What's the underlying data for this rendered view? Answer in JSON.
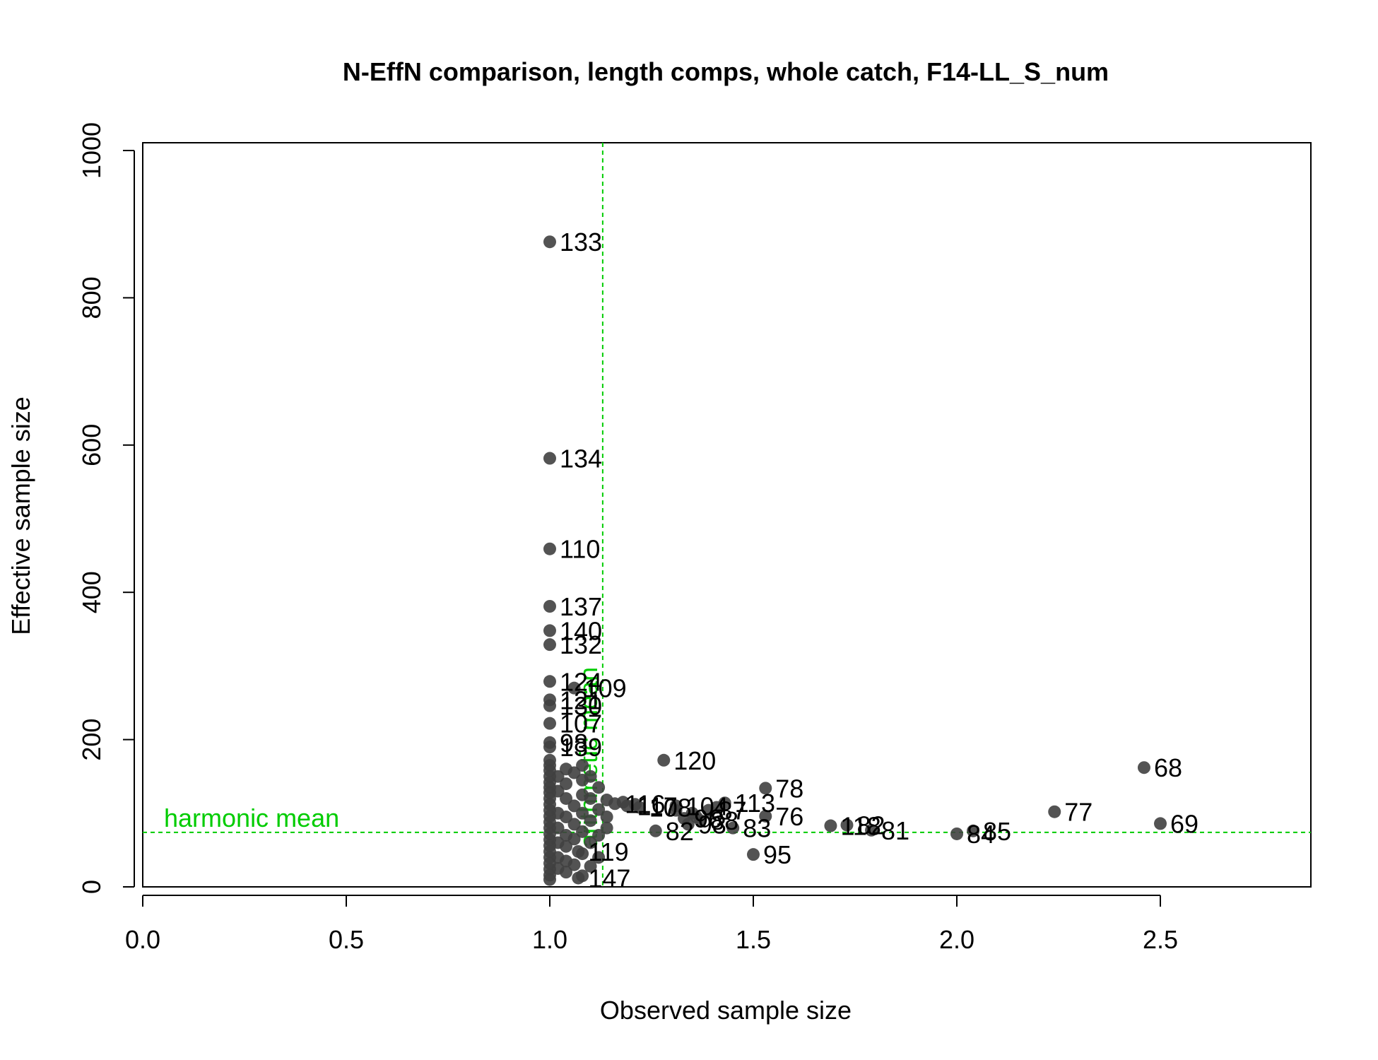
{
  "chart_data": {
    "type": "scatter",
    "title": "N-EffN comparison, length comps, whole catch, F14-LL_S_num",
    "xlabel": "Observed sample size",
    "ylabel": "Effective sample size",
    "xlim": [
      0,
      2.87
    ],
    "ylim": [
      0,
      1000
    ],
    "xticks": [
      "0.0",
      "0.5",
      "1.0",
      "1.5",
      "2.0",
      "2.5"
    ],
    "yticks": [
      "0",
      "200",
      "400",
      "600",
      "800",
      "1000"
    ],
    "grid": false,
    "colors": {
      "points": "#404040",
      "reference": "#00cc00",
      "axes": "#000000"
    },
    "reference_lines": {
      "harmonic_mean": {
        "value": 74,
        "label": "harmonic mean"
      },
      "arithmetic_mean": {
        "value": 1.13,
        "label": "arithmetic mean"
      }
    },
    "labeled_points": [
      {
        "x": 1.0,
        "y": 876,
        "label": "133"
      },
      {
        "x": 1.0,
        "y": 582,
        "label": "134"
      },
      {
        "x": 1.0,
        "y": 459,
        "label": "110"
      },
      {
        "x": 1.0,
        "y": 381,
        "label": "137"
      },
      {
        "x": 1.0,
        "y": 348,
        "label": "140"
      },
      {
        "x": 1.0,
        "y": 329,
        "label": "132"
      },
      {
        "x": 1.0,
        "y": 279,
        "label": "124"
      },
      {
        "x": 1.06,
        "y": 270,
        "label": "109"
      },
      {
        "x": 1.0,
        "y": 254,
        "label": "121"
      },
      {
        "x": 1.0,
        "y": 246,
        "label": "130"
      },
      {
        "x": 1.0,
        "y": 222,
        "label": "107"
      },
      {
        "x": 1.0,
        "y": 196,
        "label": "98"
      },
      {
        "x": 1.0,
        "y": 190,
        "label": "139"
      },
      {
        "x": 1.28,
        "y": 172,
        "label": "120"
      },
      {
        "x": 2.46,
        "y": 162,
        "label": "68"
      },
      {
        "x": 1.53,
        "y": 134,
        "label": "78"
      },
      {
        "x": 1.16,
        "y": 113,
        "label": "116"
      },
      {
        "x": 1.19,
        "y": 110,
        "label": "117"
      },
      {
        "x": 1.22,
        "y": 108,
        "label": "108"
      },
      {
        "x": 1.43,
        "y": 114,
        "label": "113"
      },
      {
        "x": 1.31,
        "y": 110,
        "label": "104"
      },
      {
        "x": 1.39,
        "y": 104,
        "label": "87"
      },
      {
        "x": 2.24,
        "y": 102,
        "label": "77"
      },
      {
        "x": 1.53,
        "y": 96,
        "label": "76"
      },
      {
        "x": 1.33,
        "y": 93,
        "label": "96"
      },
      {
        "x": 1.37,
        "y": 90,
        "label": "88"
      },
      {
        "x": 1.34,
        "y": 85,
        "label": "93"
      },
      {
        "x": 1.45,
        "y": 80,
        "label": "83"
      },
      {
        "x": 2.5,
        "y": 86,
        "label": "69"
      },
      {
        "x": 1.69,
        "y": 83,
        "label": "118"
      },
      {
        "x": 1.73,
        "y": 84,
        "label": "82"
      },
      {
        "x": 1.79,
        "y": 77,
        "label": "81"
      },
      {
        "x": 1.26,
        "y": 76,
        "label": "82"
      },
      {
        "x": 2.04,
        "y": 76,
        "label": "85"
      },
      {
        "x": 2.0,
        "y": 72,
        "label": "84"
      },
      {
        "x": 1.5,
        "y": 44,
        "label": "95"
      },
      {
        "x": 1.07,
        "y": 48,
        "label": "119"
      },
      {
        "x": 1.07,
        "y": 12,
        "label": "147"
      }
    ],
    "unlabeled_points": [
      {
        "x": 1.0,
        "y": 172
      },
      {
        "x": 1.0,
        "y": 165
      },
      {
        "x": 1.0,
        "y": 158
      },
      {
        "x": 1.0,
        "y": 150
      },
      {
        "x": 1.0,
        "y": 142
      },
      {
        "x": 1.0,
        "y": 135
      },
      {
        "x": 1.0,
        "y": 128
      },
      {
        "x": 1.0,
        "y": 120
      },
      {
        "x": 1.0,
        "y": 112
      },
      {
        "x": 1.0,
        "y": 104
      },
      {
        "x": 1.0,
        "y": 96
      },
      {
        "x": 1.0,
        "y": 88
      },
      {
        "x": 1.0,
        "y": 80
      },
      {
        "x": 1.0,
        "y": 72
      },
      {
        "x": 1.0,
        "y": 64
      },
      {
        "x": 1.0,
        "y": 56
      },
      {
        "x": 1.0,
        "y": 48
      },
      {
        "x": 1.0,
        "y": 40
      },
      {
        "x": 1.0,
        "y": 32
      },
      {
        "x": 1.0,
        "y": 24
      },
      {
        "x": 1.0,
        "y": 16
      },
      {
        "x": 1.0,
        "y": 10
      },
      {
        "x": 1.02,
        "y": 150
      },
      {
        "x": 1.02,
        "y": 130
      },
      {
        "x": 1.02,
        "y": 100
      },
      {
        "x": 1.02,
        "y": 80
      },
      {
        "x": 1.02,
        "y": 60
      },
      {
        "x": 1.02,
        "y": 40
      },
      {
        "x": 1.02,
        "y": 25
      },
      {
        "x": 1.04,
        "y": 160
      },
      {
        "x": 1.04,
        "y": 140
      },
      {
        "x": 1.04,
        "y": 120
      },
      {
        "x": 1.04,
        "y": 95
      },
      {
        "x": 1.04,
        "y": 70
      },
      {
        "x": 1.04,
        "y": 55
      },
      {
        "x": 1.04,
        "y": 35
      },
      {
        "x": 1.04,
        "y": 20
      },
      {
        "x": 1.06,
        "y": 155
      },
      {
        "x": 1.06,
        "y": 110
      },
      {
        "x": 1.06,
        "y": 85
      },
      {
        "x": 1.06,
        "y": 65
      },
      {
        "x": 1.06,
        "y": 30
      },
      {
        "x": 1.08,
        "y": 165
      },
      {
        "x": 1.08,
        "y": 145
      },
      {
        "x": 1.08,
        "y": 125
      },
      {
        "x": 1.08,
        "y": 100
      },
      {
        "x": 1.08,
        "y": 75
      },
      {
        "x": 1.08,
        "y": 45
      },
      {
        "x": 1.08,
        "y": 15
      },
      {
        "x": 1.1,
        "y": 150
      },
      {
        "x": 1.1,
        "y": 120
      },
      {
        "x": 1.1,
        "y": 90
      },
      {
        "x": 1.1,
        "y": 60
      },
      {
        "x": 1.1,
        "y": 28
      },
      {
        "x": 1.12,
        "y": 135
      },
      {
        "x": 1.12,
        "y": 105
      },
      {
        "x": 1.12,
        "y": 70
      },
      {
        "x": 1.12,
        "y": 40
      },
      {
        "x": 1.14,
        "y": 118
      },
      {
        "x": 1.14,
        "y": 95
      },
      {
        "x": 1.14,
        "y": 80
      },
      {
        "x": 1.18,
        "y": 115
      },
      {
        "x": 1.21,
        "y": 112
      },
      {
        "x": 1.35,
        "y": 100
      },
      {
        "x": 1.41,
        "y": 108
      },
      {
        "x": 1.31,
        "y": 104
      },
      {
        "x": 1.36,
        "y": 95
      }
    ]
  }
}
